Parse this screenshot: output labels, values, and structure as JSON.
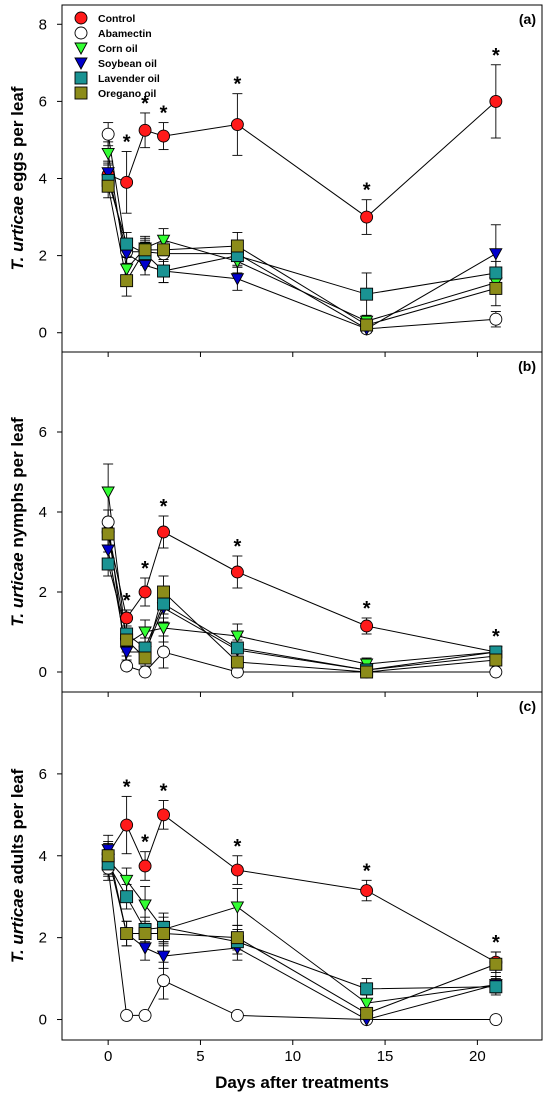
{
  "xlabel": "Days after treatments",
  "x_ticks": [
    "0",
    "5",
    "10",
    "15",
    "20"
  ],
  "series_styles": [
    {
      "name": "Control",
      "marker": "circle",
      "color": "#ff1a1a"
    },
    {
      "name": "Abamectin",
      "marker": "circle",
      "color": "#ffffff"
    },
    {
      "name": "Corn oil",
      "marker": "triangle-down",
      "color": "#33ff33"
    },
    {
      "name": "Soybean oil",
      "marker": "triangle-down",
      "color": "#0000cc"
    },
    {
      "name": "Lavender oil",
      "marker": "square",
      "color": "#1a9393"
    },
    {
      "name": "Oregano oil",
      "marker": "square",
      "color": "#8c8c1a"
    }
  ],
  "chart_data": [
    {
      "type": "line",
      "panel": "(a)",
      "ylabel_italic": "T. urticae",
      "ylabel_rest": " eggs per leaf",
      "y_ticks": [
        "0",
        "2",
        "4",
        "6",
        "8"
      ],
      "ylim": [
        -0.5,
        8.5
      ],
      "xlim": [
        -2.5,
        23.5
      ],
      "x": [
        0,
        1,
        2,
        3,
        7,
        14,
        21
      ],
      "legend": "top-left",
      "series": [
        {
          "name": "Control",
          "values": [
            4.1,
            3.9,
            5.25,
            5.1,
            5.4,
            3.0,
            6.0
          ],
          "errors": [
            0.3,
            0.8,
            0.45,
            0.35,
            0.8,
            0.45,
            0.95
          ]
        },
        {
          "name": "Abamectin",
          "values": [
            5.15,
            2.1,
            2.1,
            2.05,
            2.05,
            0.1,
            0.35
          ],
          "errors": [
            0.3,
            0.3,
            0.3,
            0.3,
            0.3,
            0.1,
            0.2
          ]
        },
        {
          "name": "Corn oil",
          "values": [
            4.65,
            1.65,
            2.2,
            2.4,
            1.85,
            0.3,
            1.3
          ],
          "errors": [
            0.3,
            0.3,
            0.3,
            0.3,
            0.3,
            0.15,
            0.3
          ]
        },
        {
          "name": "Soybean oil",
          "values": [
            4.15,
            2.05,
            1.75,
            1.6,
            1.4,
            0.1,
            2.05
          ],
          "errors": [
            0.3,
            0.3,
            0.25,
            0.3,
            0.3,
            0.1,
            0.75
          ]
        },
        {
          "name": "Lavender oil",
          "values": [
            3.95,
            2.3,
            2.05,
            1.6,
            2.0,
            1.0,
            1.55
          ],
          "errors": [
            0.3,
            0.3,
            0.3,
            0.3,
            0.3,
            0.55,
            0.3
          ]
        },
        {
          "name": "Oregano oil",
          "values": [
            3.8,
            1.35,
            2.15,
            2.15,
            2.25,
            0.2,
            1.15
          ],
          "errors": [
            0.3,
            0.4,
            0.3,
            0.3,
            0.35,
            0.2,
            0.45
          ]
        }
      ],
      "significance": [
        {
          "x": 1,
          "label": "*"
        },
        {
          "x": 2,
          "label": "*"
        },
        {
          "x": 3,
          "label": "*"
        },
        {
          "x": 7,
          "label": "*"
        },
        {
          "x": 14,
          "label": "*"
        },
        {
          "x": 21,
          "label": "*"
        }
      ]
    },
    {
      "type": "line",
      "panel": "(b)",
      "ylabel_italic": "T. urticae",
      "ylabel_rest": " nymphs per leaf",
      "y_ticks": [
        "0",
        "2",
        "4",
        "6"
      ],
      "ylim": [
        -0.5,
        8.0
      ],
      "xlim": [
        -2.5,
        23.5
      ],
      "x": [
        0,
        1,
        2,
        3,
        7,
        14,
        21
      ],
      "series": [
        {
          "name": "Control",
          "values": [
            3.5,
            1.35,
            2.0,
            3.5,
            2.5,
            1.15,
            0.5
          ],
          "errors": [
            0.35,
            0.2,
            0.35,
            0.4,
            0.4,
            0.2,
            0.15
          ]
        },
        {
          "name": "Abamectin",
          "values": [
            3.75,
            0.15,
            0.0,
            0.5,
            0.0,
            0.0,
            0.0
          ],
          "errors": [
            0.3,
            0.1,
            0.0,
            0.4,
            0.0,
            0.0,
            0.0
          ]
        },
        {
          "name": "Corn oil",
          "values": [
            4.5,
            0.7,
            1.0,
            1.1,
            0.9,
            0.2,
            0.5
          ],
          "errors": [
            0.7,
            0.3,
            0.3,
            0.35,
            0.3,
            0.15,
            0.15
          ]
        },
        {
          "name": "Soybean oil",
          "values": [
            3.05,
            0.5,
            0.5,
            1.6,
            0.55,
            0.05,
            0.4
          ],
          "errors": [
            0.3,
            0.2,
            0.2,
            0.35,
            0.25,
            0.05,
            0.15
          ]
        },
        {
          "name": "Lavender oil",
          "values": [
            2.7,
            0.95,
            0.6,
            1.7,
            0.6,
            0.05,
            0.5
          ],
          "errors": [
            0.3,
            0.3,
            0.25,
            0.35,
            0.3,
            0.05,
            0.15
          ]
        },
        {
          "name": "Oregano oil",
          "values": [
            3.45,
            0.8,
            0.35,
            2.0,
            0.25,
            0.0,
            0.3
          ],
          "errors": [
            0.3,
            0.3,
            0.2,
            0.4,
            0.25,
            0.05,
            0.15
          ]
        }
      ],
      "significance": [
        {
          "x": 1,
          "label": "*"
        },
        {
          "x": 2,
          "label": "*"
        },
        {
          "x": 3,
          "label": "*"
        },
        {
          "x": 7,
          "label": "*"
        },
        {
          "x": 14,
          "label": "*"
        },
        {
          "x": 21,
          "label": "*"
        }
      ]
    },
    {
      "type": "line",
      "panel": "(c)",
      "ylabel_italic": "T. urticae",
      "ylabel_rest": " adults per leaf",
      "y_ticks": [
        "0",
        "2",
        "4",
        "6"
      ],
      "ylim": [
        -0.5,
        8.0
      ],
      "xlim": [
        -2.5,
        23.5
      ],
      "x": [
        0,
        1,
        2,
        3,
        7,
        14,
        21
      ],
      "series": [
        {
          "name": "Control",
          "values": [
            4.05,
            4.75,
            3.75,
            5.0,
            3.65,
            3.15,
            1.4
          ],
          "errors": [
            0.3,
            0.7,
            0.35,
            0.35,
            0.35,
            0.25,
            0.25
          ]
        },
        {
          "name": "Abamectin",
          "values": [
            3.7,
            0.1,
            0.1,
            0.95,
            0.1,
            0.0,
            0.0
          ],
          "errors": [
            0.3,
            0.05,
            0.05,
            0.45,
            0.05,
            0.0,
            0.0
          ]
        },
        {
          "name": "Corn oil",
          "values": [
            3.9,
            3.4,
            2.8,
            2.2,
            2.75,
            0.4,
            0.85
          ],
          "errors": [
            0.35,
            0.3,
            0.45,
            0.3,
            0.45,
            0.2,
            0.2
          ]
        },
        {
          "name": "Soybean oil",
          "values": [
            4.15,
            2.1,
            1.75,
            1.55,
            1.75,
            0.0,
            0.85
          ],
          "errors": [
            0.35,
            0.3,
            0.3,
            0.3,
            0.3,
            0.05,
            0.2
          ]
        },
        {
          "name": "Lavender oil",
          "values": [
            3.8,
            3.0,
            2.2,
            2.25,
            1.9,
            0.75,
            0.8
          ],
          "errors": [
            0.3,
            0.3,
            0.3,
            0.35,
            0.3,
            0.25,
            0.2
          ]
        },
        {
          "name": "Oregano oil",
          "values": [
            4.0,
            2.1,
            2.1,
            2.1,
            2.0,
            0.15,
            1.35
          ],
          "errors": [
            0.3,
            0.3,
            0.3,
            0.3,
            0.3,
            0.1,
            0.3
          ]
        }
      ],
      "significance": [
        {
          "x": 1,
          "label": "*"
        },
        {
          "x": 2,
          "label": "*"
        },
        {
          "x": 3,
          "label": "*"
        },
        {
          "x": 7,
          "label": "*"
        },
        {
          "x": 14,
          "label": "*"
        },
        {
          "x": 21,
          "label": "*"
        }
      ]
    }
  ]
}
